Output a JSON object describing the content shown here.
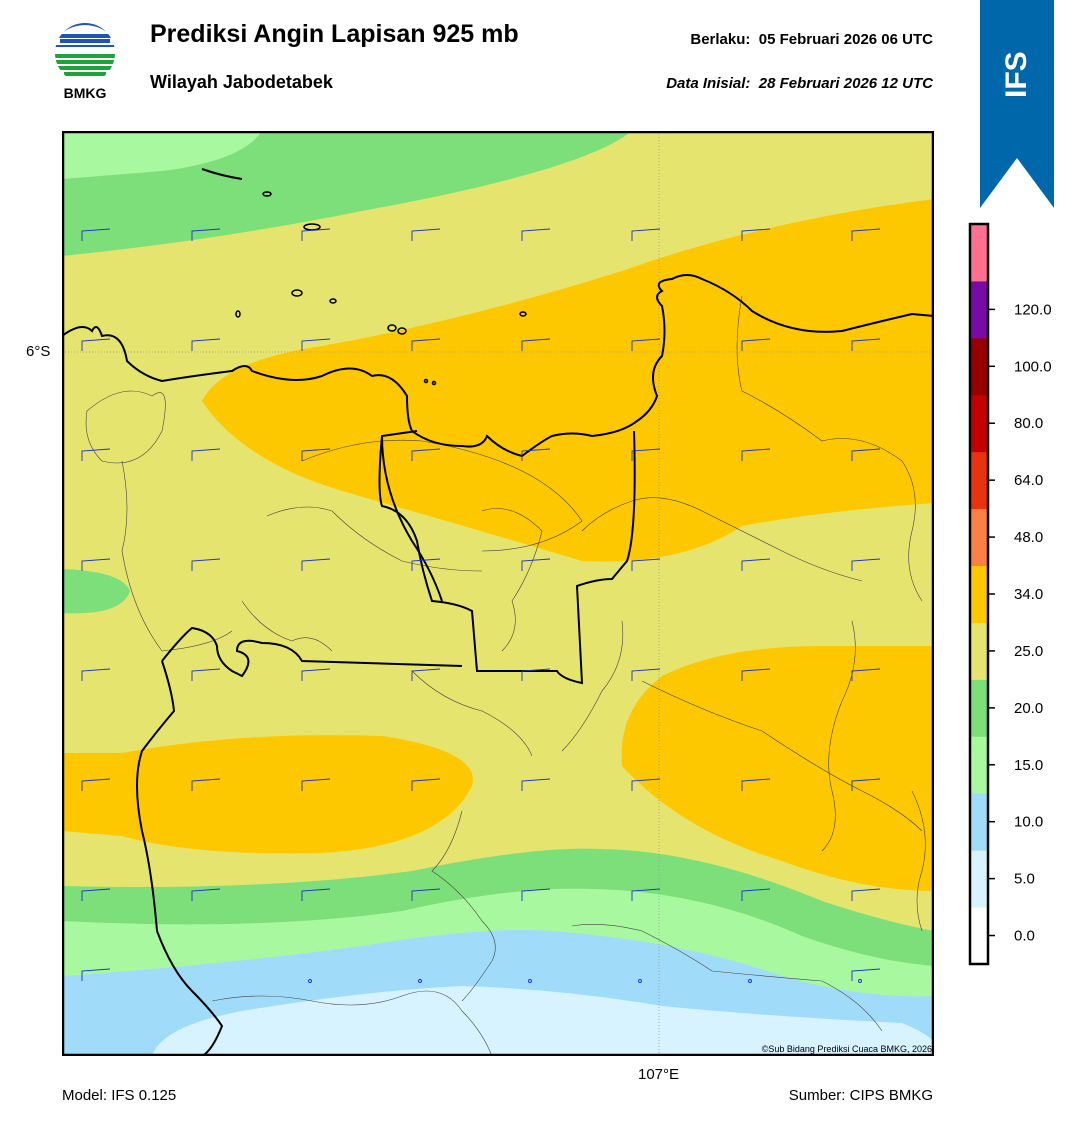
{
  "header": {
    "logo_text": "BMKG",
    "title": "Prediksi Angin Lapisan 925 mb",
    "subtitle": "Wilayah Jabodetabek",
    "valid_label": "Berlaku:",
    "valid_value": "05 Februari 2026 06 UTC",
    "init_label": "Data Inisial:",
    "init_value": "28 Februari 2026 12 UTC",
    "ribbon_text": "IFS"
  },
  "map": {
    "lat_label": "6°S",
    "lon_label": "107°E",
    "copyright": "©Sub Bidang Prediksi Cuaca BMKG, 2026"
  },
  "colorbar": {
    "ticks": [
      "0.0",
      "5.0",
      "10.0",
      "15.0",
      "20.0",
      "25.0",
      "34.0",
      "48.0",
      "64.0",
      "80.0",
      "100.0",
      "120.0"
    ],
    "colors": [
      "#ffffff",
      "#d6f3ff",
      "#a0dcfa",
      "#a8f8a0",
      "#7ddf7a",
      "#e5e46e",
      "#fdc800",
      "#fc7f43",
      "#e93210",
      "#c40000",
      "#960000",
      "#7a0aa8",
      "#ff6f8f"
    ]
  },
  "footer": {
    "model": "Model: IFS 0.125",
    "source": "Sumber: CIPS BMKG"
  }
}
